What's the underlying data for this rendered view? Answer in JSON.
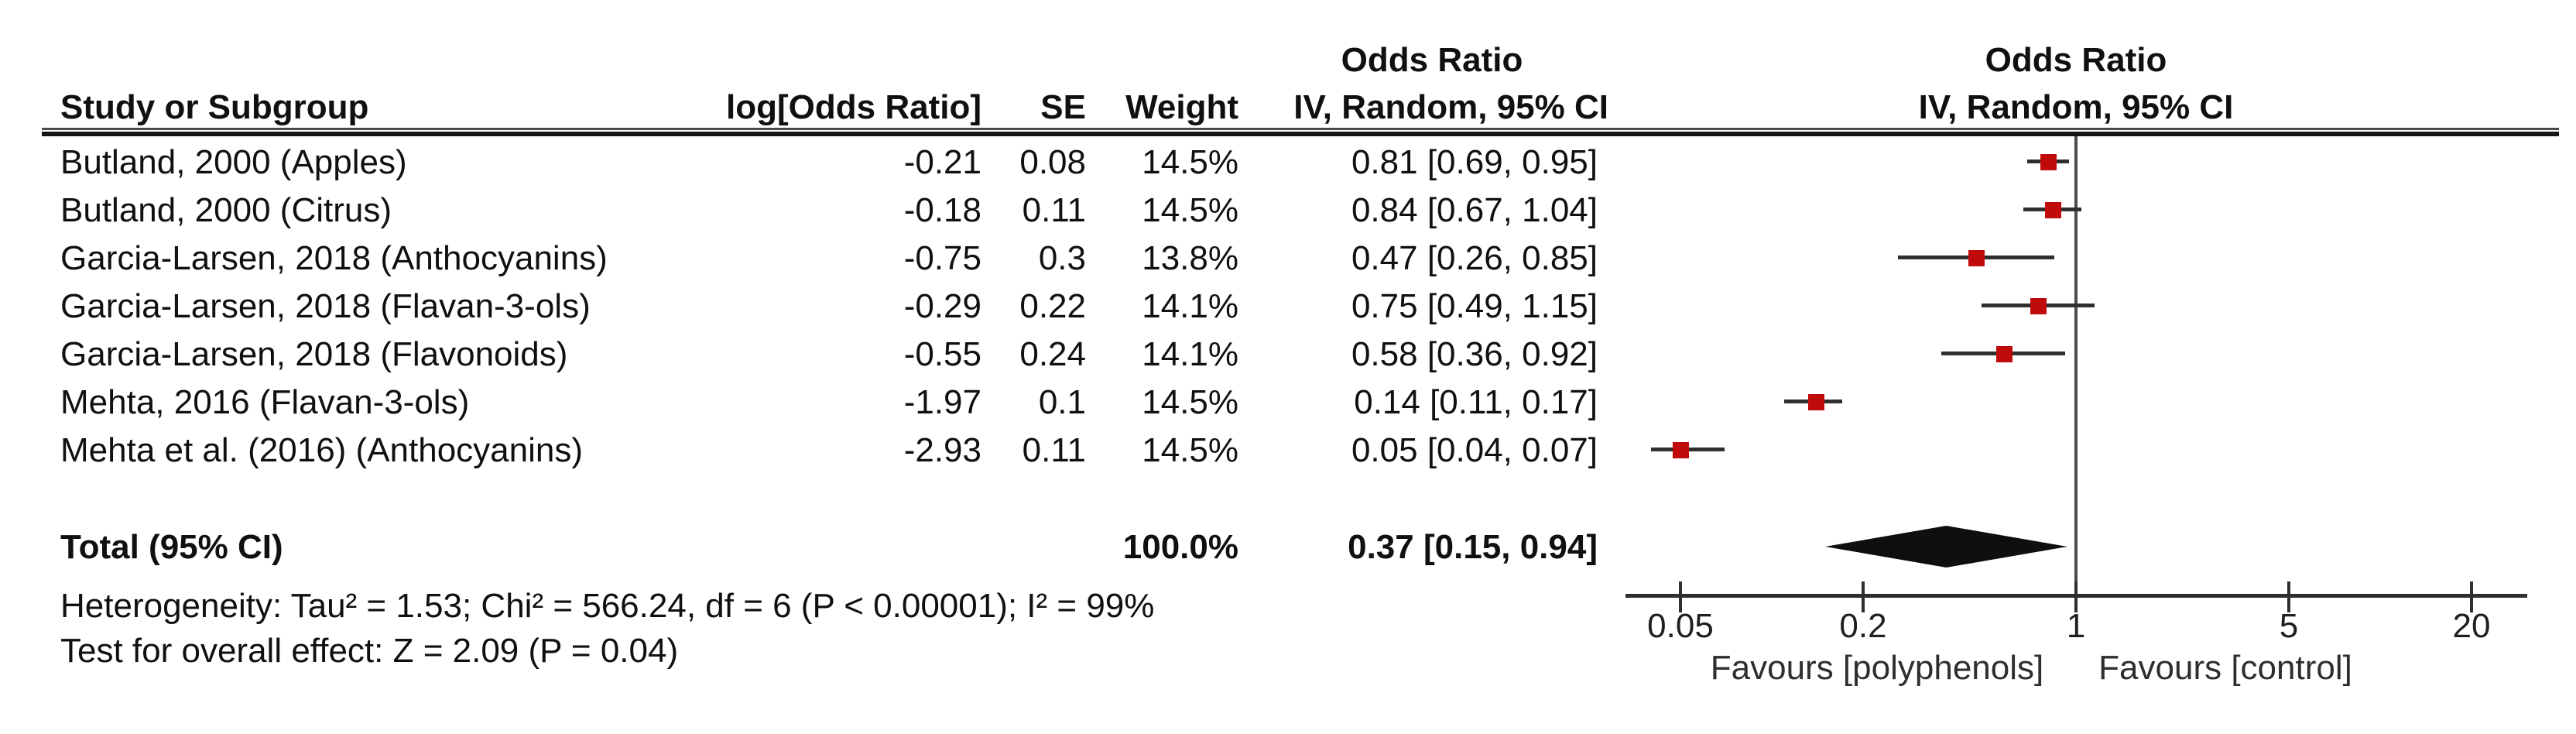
{
  "table_headers": {
    "study": "Study or Subgroup",
    "log_or": "log[Odds Ratio]",
    "se": "SE",
    "weight": "Weight",
    "or_col_line1": "Odds Ratio",
    "or_col_line2": "IV, Random, 95% CI",
    "plot_line1": "Odds Ratio",
    "plot_line2": "IV, Random, 95% CI"
  },
  "footnotes": {
    "heterogeneity": "Heterogeneity: Tau² = 1.53; Chi² = 566.24, df = 6 (P < 0.00001); I² = 99%",
    "overall_effect": "Test for overall effect: Z = 2.09 (P = 0.04)"
  },
  "chart_data": {
    "type": "forest",
    "effect_measure": "Odds Ratio",
    "method": "IV, Random, 95% CI",
    "x_scale": "log",
    "x_ticks": [
      0.05,
      0.2,
      1,
      5,
      20
    ],
    "x_tick_labels": [
      "0.05",
      "0.2",
      "1",
      "5",
      "20"
    ],
    "null_line_value": 1,
    "favours_left": "Favours [polyphenols]",
    "favours_right": "Favours [control]",
    "marker_color": "#c00a0c",
    "studies": [
      {
        "label": "Butland, 2000 (Apples)",
        "log_or": "-0.21",
        "se": "0.08",
        "weight": "14.5%",
        "or_ci": "0.81 [0.69, 0.95]",
        "or": 0.81,
        "ci_low": 0.69,
        "ci_high": 0.95
      },
      {
        "label": "Butland, 2000 (Citrus)",
        "log_or": "-0.18",
        "se": "0.11",
        "weight": "14.5%",
        "or_ci": "0.84 [0.67, 1.04]",
        "or": 0.84,
        "ci_low": 0.67,
        "ci_high": 1.04
      },
      {
        "label": "Garcia-Larsen, 2018 (Anthocyanins)",
        "log_or": "-0.75",
        "se": "0.3",
        "weight": "13.8%",
        "or_ci": "0.47 [0.26, 0.85]",
        "or": 0.47,
        "ci_low": 0.26,
        "ci_high": 0.85
      },
      {
        "label": "Garcia-Larsen, 2018 (Flavan-3-ols)",
        "log_or": "-0.29",
        "se": "0.22",
        "weight": "14.1%",
        "or_ci": "0.75 [0.49, 1.15]",
        "or": 0.75,
        "ci_low": 0.49,
        "ci_high": 1.15
      },
      {
        "label": "Garcia-Larsen, 2018 (Flavonoids)",
        "log_or": "-0.55",
        "se": "0.24",
        "weight": "14.1%",
        "or_ci": "0.58 [0.36, 0.92]",
        "or": 0.58,
        "ci_low": 0.36,
        "ci_high": 0.92
      },
      {
        "label": "Mehta, 2016 (Flavan-3-ols)",
        "log_or": "-1.97",
        "se": "0.1",
        "weight": "14.5%",
        "or_ci": "0.14 [0.11, 0.17]",
        "or": 0.14,
        "ci_low": 0.11,
        "ci_high": 0.17
      },
      {
        "label": "Mehta et al. (2016) (Anthocyanins)",
        "log_or": "-2.93",
        "se": "0.11",
        "weight": "14.5%",
        "or_ci": "0.05 [0.04, 0.07]",
        "or": 0.05,
        "ci_low": 0.04,
        "ci_high": 0.07
      }
    ],
    "total": {
      "label": "Total (95% CI)",
      "weight": "100.0%",
      "or_ci": "0.37 [0.15, 0.94]",
      "or": 0.37,
      "ci_low": 0.15,
      "ci_high": 0.94
    }
  }
}
